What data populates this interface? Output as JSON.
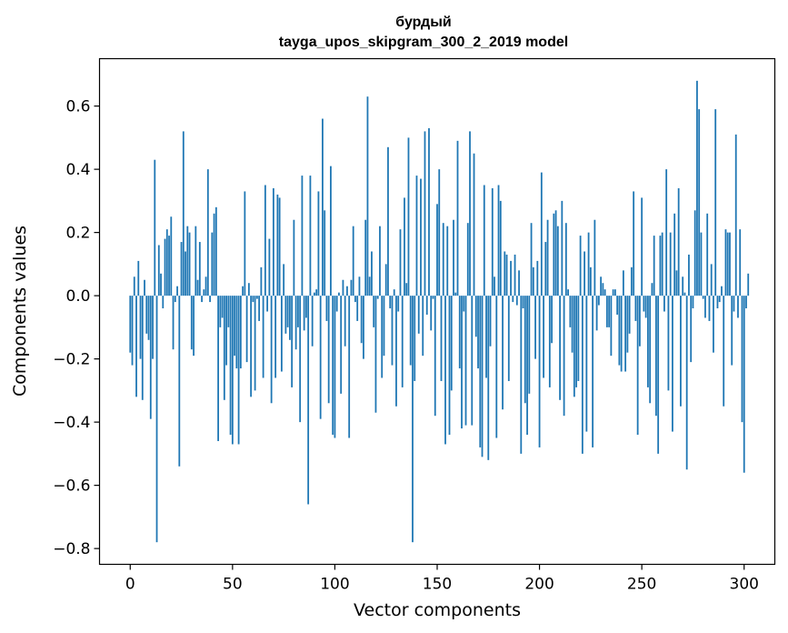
{
  "chart_data": {
    "type": "bar",
    "title": "бурдый",
    "subtitle": "tayga_upos_skipgram_300_2_2019 model",
    "xlabel": "Vector components",
    "ylabel": "Components values",
    "xlim": [
      -15,
      315
    ],
    "ylim": [
      -0.85,
      0.75
    ],
    "xticks": [
      0,
      50,
      100,
      150,
      200,
      250,
      300
    ],
    "yticks": [
      -0.8,
      -0.6,
      -0.4,
      -0.2,
      0.0,
      0.2,
      0.4,
      0.6
    ],
    "ytick_labels": [
      "−0.8",
      "−0.6",
      "−0.4",
      "−0.2",
      "0.0",
      "0.2",
      "0.4",
      "0.6"
    ],
    "bar_color": "#1f77b4",
    "grid": false,
    "values": [
      -0.18,
      -0.22,
      0.06,
      -0.32,
      0.11,
      -0.2,
      -0.33,
      0.05,
      -0.12,
      -0.14,
      -0.39,
      -0.2,
      0.43,
      -0.78,
      0.16,
      0.07,
      -0.04,
      0.18,
      0.21,
      0.19,
      0.25,
      -0.17,
      -0.02,
      0.03,
      -0.54,
      0.17,
      0.52,
      0.14,
      0.22,
      0.2,
      -0.17,
      -0.19,
      0.22,
      0.05,
      0.17,
      -0.02,
      0.02,
      0.06,
      0.4,
      -0.02,
      0.2,
      0.26,
      0.28,
      -0.46,
      -0.1,
      -0.07,
      -0.33,
      -0.22,
      -0.1,
      -0.44,
      -0.47,
      -0.19,
      -0.23,
      -0.47,
      -0.23,
      0.03,
      0.33,
      -0.21,
      0.04,
      -0.32,
      -0.02,
      -0.3,
      -0.01,
      -0.08,
      0.09,
      -0.26,
      0.35,
      -0.05,
      0.18,
      -0.34,
      0.34,
      -0.26,
      0.32,
      0.31,
      -0.24,
      0.1,
      -0.12,
      -0.1,
      -0.14,
      -0.29,
      0.24,
      -0.17,
      -0.1,
      -0.4,
      0.38,
      -0.11,
      -0.07,
      -0.66,
      0.38,
      -0.16,
      0.01,
      0.02,
      0.33,
      -0.39,
      0.56,
      0.27,
      -0.08,
      -0.34,
      0.41,
      -0.44,
      -0.45,
      -0.05,
      0.01,
      -0.31,
      0.05,
      -0.16,
      0.03,
      -0.45,
      0.05,
      0.22,
      -0.02,
      -0.08,
      0.06,
      -0.15,
      -0.2,
      0.24,
      0.63,
      0.06,
      0.14,
      -0.1,
      -0.37,
      -0.01,
      0.22,
      -0.26,
      -0.19,
      0.1,
      0.47,
      -0.04,
      -0.22,
      0.02,
      -0.35,
      -0.05,
      0.21,
      -0.29,
      0.31,
      0.04,
      0.5,
      -0.22,
      -0.78,
      -0.27,
      0.38,
      -0.12,
      0.37,
      -0.19,
      0.52,
      -0.06,
      0.53,
      -0.11,
      -0.01,
      -0.38,
      0.29,
      0.4,
      -0.27,
      0.23,
      -0.47,
      0.22,
      -0.44,
      -0.3,
      0.24,
      0.01,
      0.49,
      -0.23,
      -0.42,
      -0.05,
      -0.41,
      0.23,
      0.52,
      -0.41,
      0.45,
      -0.13,
      -0.23,
      -0.48,
      -0.51,
      0.35,
      -0.26,
      -0.52,
      -0.16,
      0.34,
      0.06,
      -0.45,
      0.35,
      0.3,
      -0.36,
      0.14,
      0.13,
      -0.27,
      0.11,
      -0.02,
      0.13,
      -0.03,
      0.08,
      -0.5,
      -0.04,
      -0.34,
      -0.44,
      -0.31,
      0.23,
      0.09,
      -0.2,
      0.11,
      -0.48,
      0.39,
      -0.26,
      0.17,
      0.24,
      -0.29,
      -0.15,
      0.26,
      0.27,
      0.22,
      -0.33,
      0.3,
      -0.38,
      0.23,
      0.02,
      -0.1,
      -0.18,
      -0.32,
      -0.29,
      -0.27,
      0.19,
      -0.5,
      0.14,
      -0.43,
      0.2,
      0.09,
      -0.48,
      0.24,
      -0.11,
      -0.03,
      0.06,
      0.04,
      0.02,
      -0.1,
      -0.1,
      -0.19,
      0.02,
      0.02,
      -0.06,
      -0.22,
      -0.24,
      0.08,
      -0.24,
      -0.18,
      -0.12,
      0.09,
      0.33,
      -0.08,
      -0.44,
      -0.16,
      0.31,
      -0.05,
      -0.07,
      -0.29,
      -0.34,
      0.04,
      0.19,
      -0.38,
      -0.5,
      0.19,
      0.2,
      -0.05,
      0.4,
      -0.3,
      0.2,
      -0.43,
      0.26,
      0.08,
      0.34,
      -0.35,
      0.06,
      0.01,
      -0.55,
      0.13,
      -0.21,
      -0.04,
      0.27,
      0.68,
      0.59,
      0.2,
      -0.01,
      -0.07,
      0.26,
      -0.08,
      0.1,
      -0.18,
      0.59,
      -0.04,
      -0.02,
      0.03,
      -0.35,
      0.21,
      0.2,
      0.2,
      -0.22,
      -0.05,
      0.51,
      -0.07,
      0.21,
      -0.4,
      -0.56,
      -0.04,
      0.07
    ]
  }
}
